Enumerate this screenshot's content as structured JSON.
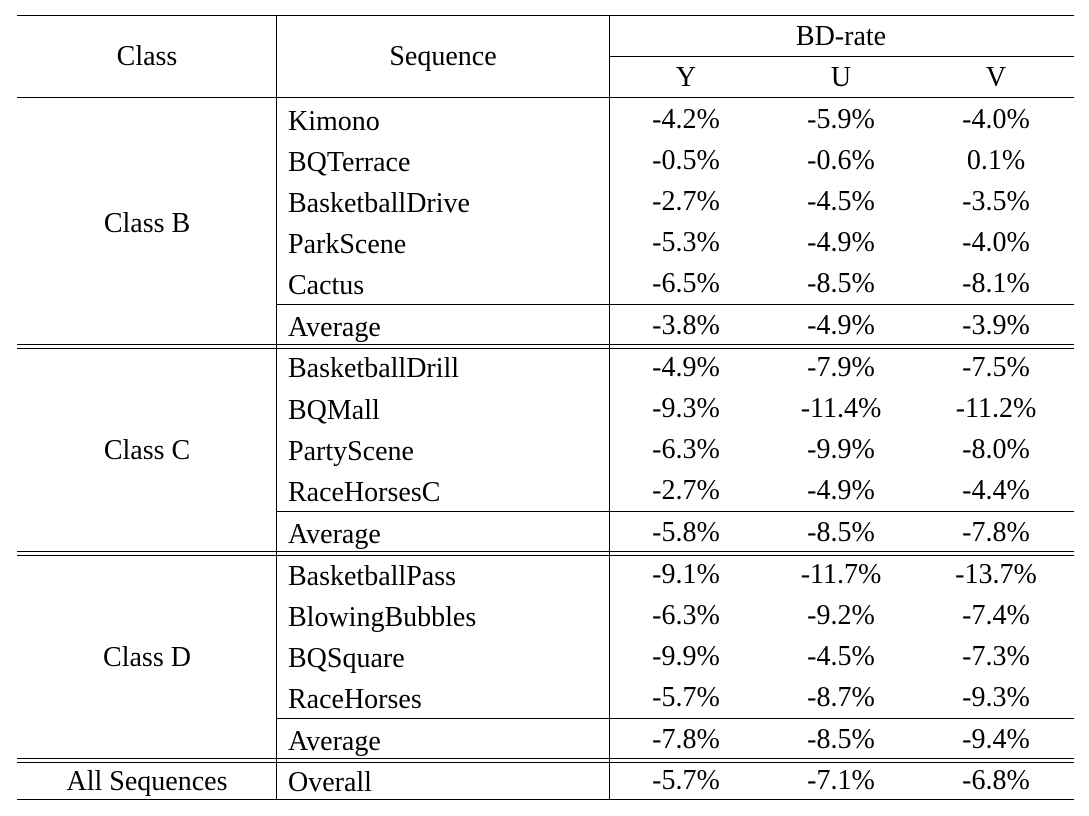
{
  "headers": {
    "class": "Class",
    "sequence": "Sequence",
    "bdrate": "BD-rate",
    "y": "Y",
    "u": "U",
    "v": "V"
  },
  "groups": [
    {
      "name": "Class B",
      "rows": [
        {
          "seq": "Kimono",
          "y": "-4.2%",
          "u": "-5.9%",
          "v": "-4.0%"
        },
        {
          "seq": "BQTerrace",
          "y": "-0.5%",
          "u": "-0.6%",
          "v": "0.1%"
        },
        {
          "seq": "BasketballDrive",
          "y": "-2.7%",
          "u": "-4.5%",
          "v": "-3.5%"
        },
        {
          "seq": "ParkScene",
          "y": "-5.3%",
          "u": "-4.9%",
          "v": "-4.0%"
        },
        {
          "seq": "Cactus",
          "y": "-6.5%",
          "u": "-8.5%",
          "v": "-8.1%"
        }
      ],
      "average": {
        "label": "Average",
        "y": "-3.8%",
        "u": "-4.9%",
        "v": "-3.9%"
      }
    },
    {
      "name": "Class C",
      "rows": [
        {
          "seq": "BasketballDrill",
          "y": "-4.9%",
          "u": "-7.9%",
          "v": "-7.5%"
        },
        {
          "seq": "BQMall",
          "y": "-9.3%",
          "u": "-11.4%",
          "v": "-11.2%"
        },
        {
          "seq": "PartyScene",
          "y": "-6.3%",
          "u": "-9.9%",
          "v": "-8.0%"
        },
        {
          "seq": "RaceHorsesC",
          "y": "-2.7%",
          "u": "-4.9%",
          "v": "-4.4%"
        }
      ],
      "average": {
        "label": "Average",
        "y": "-5.8%",
        "u": "-8.5%",
        "v": "-7.8%"
      }
    },
    {
      "name": "Class D",
      "rows": [
        {
          "seq": "BasketballPass",
          "y": "-9.1%",
          "u": "-11.7%",
          "v": "-13.7%"
        },
        {
          "seq": "BlowingBubbles",
          "y": "-6.3%",
          "u": "-9.2%",
          "v": "-7.4%"
        },
        {
          "seq": "BQSquare",
          "y": "-9.9%",
          "u": "-4.5%",
          "v": "-7.3%"
        },
        {
          "seq": "RaceHorses",
          "y": "-5.7%",
          "u": "-8.7%",
          "v": "-9.3%"
        }
      ],
      "average": {
        "label": "Average",
        "y": "-7.8%",
        "u": "-8.5%",
        "v": "-9.4%"
      }
    }
  ],
  "overall": {
    "class": "All Sequences",
    "seq": "Overall",
    "y": "-5.7%",
    "u": "-7.1%",
    "v": "-6.8%"
  }
}
